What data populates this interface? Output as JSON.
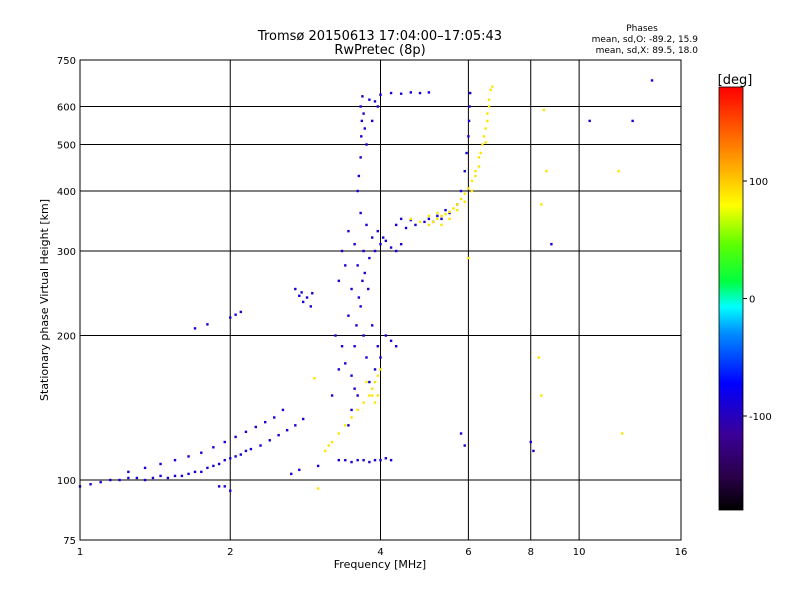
{
  "chart_data": {
    "type": "scatter",
    "title": "Tromsø 20150613 17:04:00–17:05:43",
    "subtitle": "RwPretec (8p)",
    "xlabel": "Frequency [MHz]",
    "ylabel": "Stationary phase Virtual Height [km]",
    "x_scale": "log",
    "y_scale": "log",
    "xlim": [
      1,
      16
    ],
    "ylim": [
      75,
      750
    ],
    "x_ticks": [
      1,
      2,
      4,
      6,
      8,
      10,
      16
    ],
    "x_tick_labels": [
      "1",
      "2",
      "4",
      "6",
      "8",
      "10",
      "16"
    ],
    "y_ticks": [
      75,
      100,
      200,
      300,
      400,
      500,
      600,
      750
    ],
    "y_tick_labels": [
      "75",
      "100",
      "200",
      "300",
      "400",
      "500",
      "600",
      "750"
    ],
    "grid": true,
    "legend": {
      "title": "Phases",
      "lines": [
        "mean, sd,O: -89.2, 15.9",
        "mean, sd,X:  89.5, 18.0"
      ],
      "placement": "top-right"
    },
    "colorbar": {
      "label": "[deg]",
      "range": [
        -180,
        180
      ],
      "ticks": [
        100,
        0,
        -100
      ],
      "tick_labels": [
        "100",
        "0",
        "-100"
      ],
      "colors": [
        "#000000",
        "#4b0082",
        "#0000ff",
        "#00ffff",
        "#00ff00",
        "#ffff00",
        "#ff8000",
        "#ff0000"
      ]
    },
    "series": [
      {
        "name": "O",
        "phase": -89.2,
        "points": [
          [
            1.0,
            97
          ],
          [
            1.05,
            98
          ],
          [
            1.1,
            99
          ],
          [
            1.15,
            100
          ],
          [
            1.2,
            100
          ],
          [
            1.25,
            101
          ],
          [
            1.3,
            101
          ],
          [
            1.35,
            100
          ],
          [
            1.4,
            101
          ],
          [
            1.45,
            102
          ],
          [
            1.5,
            101
          ],
          [
            1.55,
            102
          ],
          [
            1.6,
            102
          ],
          [
            1.65,
            103
          ],
          [
            1.7,
            104
          ],
          [
            1.75,
            104
          ],
          [
            1.8,
            106
          ],
          [
            1.85,
            107
          ],
          [
            1.9,
            108
          ],
          [
            1.95,
            110
          ],
          [
            2.0,
            111
          ],
          [
            2.05,
            112
          ],
          [
            2.1,
            113
          ],
          [
            2.15,
            115
          ],
          [
            2.2,
            116
          ],
          [
            2.3,
            118
          ],
          [
            2.4,
            121
          ],
          [
            2.5,
            124
          ],
          [
            2.6,
            127
          ],
          [
            2.7,
            130
          ],
          [
            2.8,
            134
          ],
          [
            1.25,
            104
          ],
          [
            1.35,
            106
          ],
          [
            1.45,
            108
          ],
          [
            1.55,
            110
          ],
          [
            1.65,
            112
          ],
          [
            1.75,
            114
          ],
          [
            1.85,
            117
          ],
          [
            1.95,
            120
          ],
          [
            2.05,
            123
          ],
          [
            2.15,
            126
          ],
          [
            2.25,
            129
          ],
          [
            2.35,
            132
          ],
          [
            2.45,
            135
          ],
          [
            2.55,
            140
          ],
          [
            1.7,
            207
          ],
          [
            1.8,
            211
          ],
          [
            2.0,
            218
          ],
          [
            2.05,
            221
          ],
          [
            2.1,
            224
          ],
          [
            2.7,
            250
          ],
          [
            2.75,
            242
          ],
          [
            2.8,
            235
          ],
          [
            2.85,
            240
          ],
          [
            2.9,
            230
          ],
          [
            2.78,
            246
          ],
          [
            2.92,
            245
          ],
          [
            3.2,
            150
          ],
          [
            3.25,
            200
          ],
          [
            3.3,
            170
          ],
          [
            3.3,
            260
          ],
          [
            3.35,
            300
          ],
          [
            3.35,
            190
          ],
          [
            3.4,
            280
          ],
          [
            3.4,
            175
          ],
          [
            3.45,
            330
          ],
          [
            3.45,
            220
          ],
          [
            3.5,
            250
          ],
          [
            3.5,
            165
          ],
          [
            3.55,
            310
          ],
          [
            3.55,
            190
          ],
          [
            3.6,
            280
          ],
          [
            3.6,
            150
          ],
          [
            3.65,
            360
          ],
          [
            3.65,
            230
          ],
          [
            3.7,
            300
          ],
          [
            3.7,
            200
          ],
          [
            3.75,
            340
          ],
          [
            3.75,
            180
          ],
          [
            3.8,
            290
          ],
          [
            3.8,
            160
          ],
          [
            3.85,
            320
          ],
          [
            3.85,
            210
          ],
          [
            3.9,
            300
          ],
          [
            3.9,
            170
          ],
          [
            3.95,
            330
          ],
          [
            3.95,
            190
          ],
          [
            4.0,
            310
          ],
          [
            4.0,
            180
          ],
          [
            4.05,
            320
          ],
          [
            4.1,
            200
          ],
          [
            4.1,
            315
          ],
          [
            4.2,
            305
          ],
          [
            4.2,
            195
          ],
          [
            4.3,
            300
          ],
          [
            4.3,
            190
          ],
          [
            4.4,
            310
          ],
          [
            3.45,
            130
          ],
          [
            3.5,
            140
          ],
          [
            3.55,
            155
          ],
          [
            3.58,
            210
          ],
          [
            3.62,
            240
          ],
          [
            3.68,
            260
          ],
          [
            3.72,
            270
          ],
          [
            3.78,
            250
          ],
          [
            3.6,
            400
          ],
          [
            3.62,
            430
          ],
          [
            3.65,
            470
          ],
          [
            3.66,
            520
          ],
          [
            3.67,
            560
          ],
          [
            3.65,
            600
          ],
          [
            3.68,
            630
          ],
          [
            3.7,
            580
          ],
          [
            3.72,
            540
          ],
          [
            3.75,
            500
          ],
          [
            3.8,
            620
          ],
          [
            3.9,
            615
          ],
          [
            4.0,
            635
          ],
          [
            4.2,
            640
          ],
          [
            4.4,
            638
          ],
          [
            4.6,
            642
          ],
          [
            4.8,
            640
          ],
          [
            5.0,
            642
          ],
          [
            3.85,
            560
          ],
          [
            3.95,
            600
          ],
          [
            4.3,
            340
          ],
          [
            4.5,
            335
          ],
          [
            4.7,
            340
          ],
          [
            4.9,
            345
          ],
          [
            5.1,
            345
          ],
          [
            5.3,
            350
          ],
          [
            5.5,
            360
          ],
          [
            5.7,
            375
          ],
          [
            5.8,
            400
          ],
          [
            5.9,
            440
          ],
          [
            5.95,
            480
          ],
          [
            6.0,
            520
          ],
          [
            6.02,
            560
          ],
          [
            6.03,
            600
          ],
          [
            6.05,
            640
          ],
          [
            4.4,
            350
          ],
          [
            4.6,
            348
          ],
          [
            5.0,
            350
          ],
          [
            5.2,
            355
          ],
          [
            5.4,
            365
          ],
          [
            3.3,
            110
          ],
          [
            3.4,
            110
          ],
          [
            3.5,
            109
          ],
          [
            3.6,
            110
          ],
          [
            3.7,
            110
          ],
          [
            3.8,
            109
          ],
          [
            3.9,
            110
          ],
          [
            4.0,
            110
          ],
          [
            4.1,
            111
          ],
          [
            4.2,
            110
          ],
          [
            1.95,
            97
          ],
          [
            2.0,
            95
          ],
          [
            1.9,
            97
          ],
          [
            2.65,
            103
          ],
          [
            2.75,
            105
          ],
          [
            3.0,
            107
          ],
          [
            8.0,
            120
          ],
          [
            8.1,
            115
          ],
          [
            8.8,
            310
          ],
          [
            10.5,
            560
          ],
          [
            14.0,
            680
          ],
          [
            12.8,
            560
          ],
          [
            5.8,
            125
          ],
          [
            5.9,
            118
          ]
        ]
      },
      {
        "name": "X",
        "phase": 89.5,
        "points": [
          [
            3.1,
            115
          ],
          [
            3.15,
            118
          ],
          [
            3.2,
            120
          ],
          [
            3.3,
            125
          ],
          [
            3.4,
            130
          ],
          [
            3.5,
            135
          ],
          [
            3.6,
            140
          ],
          [
            3.7,
            145
          ],
          [
            3.8,
            150
          ],
          [
            3.85,
            155
          ],
          [
            3.9,
            160
          ],
          [
            3.95,
            165
          ],
          [
            4.0,
            170
          ],
          [
            3.75,
            160
          ],
          [
            3.85,
            150
          ],
          [
            3.9,
            145
          ],
          [
            3.95,
            150
          ],
          [
            5.0,
            340
          ],
          [
            5.1,
            345
          ],
          [
            5.2,
            350
          ],
          [
            5.3,
            355
          ],
          [
            5.4,
            358
          ],
          [
            5.5,
            362
          ],
          [
            5.6,
            368
          ],
          [
            5.7,
            375
          ],
          [
            5.8,
            385
          ],
          [
            5.9,
            395
          ],
          [
            6.0,
            405
          ],
          [
            6.1,
            420
          ],
          [
            6.2,
            440
          ],
          [
            6.3,
            470
          ],
          [
            6.4,
            500
          ],
          [
            6.5,
            540
          ],
          [
            6.55,
            580
          ],
          [
            6.6,
            620
          ],
          [
            6.65,
            650
          ],
          [
            6.7,
            660
          ],
          [
            5.3,
            340
          ],
          [
            5.5,
            350
          ],
          [
            5.7,
            365
          ],
          [
            5.9,
            380
          ],
          [
            6.1,
            400
          ],
          [
            6.2,
            430
          ],
          [
            6.35,
            480
          ],
          [
            6.45,
            520
          ],
          [
            6.55,
            560
          ],
          [
            6.6,
            600
          ],
          [
            4.6,
            350
          ],
          [
            4.8,
            345
          ],
          [
            5.0,
            355
          ],
          [
            5.2,
            360
          ],
          [
            6.3,
            450
          ],
          [
            6.5,
            505
          ],
          [
            3.0,
            96
          ],
          [
            2.95,
            163
          ],
          [
            6.0,
            290
          ],
          [
            8.5,
            590
          ],
          [
            8.6,
            440
          ],
          [
            8.4,
            375
          ],
          [
            12.0,
            440
          ],
          [
            12.2,
            125
          ],
          [
            8.3,
            180
          ],
          [
            8.4,
            150
          ]
        ]
      }
    ]
  }
}
